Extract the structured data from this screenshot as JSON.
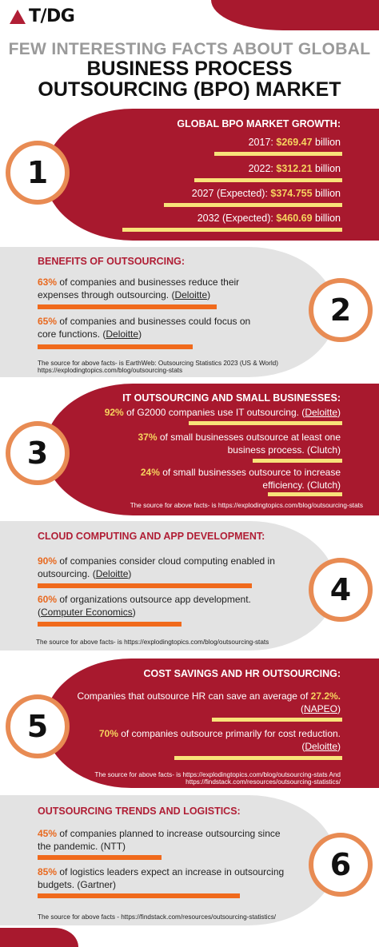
{
  "logo": {
    "text": "T/DG"
  },
  "title": {
    "line1": "FEW INTERESTING FACTS ABOUT GLOBAL",
    "line2": "BUSINESS PROCESS",
    "line3": "OUTSOURCING (BPO) MARKET"
  },
  "colors": {
    "red": "#a8192e",
    "gray": "#e3e3e3",
    "orange": "#f06a1c",
    "yellow": "#f8e27a",
    "circle_border": "#e88b53"
  },
  "sections": [
    {
      "number": "1",
      "heading": "GLOBAL BPO MARKET GROWTH:",
      "rows": [
        {
          "label": "2017: ",
          "value": "$269.47",
          "unit": " billion"
        },
        {
          "label": "2022: ",
          "value": "$312.21",
          "unit": " billion"
        },
        {
          "label": "2027 (Expected): ",
          "value": "$374.755",
          "unit": " billion"
        },
        {
          "label": "2032 (Expected): ",
          "value": "$460.69",
          "unit": " billion"
        }
      ]
    },
    {
      "number": "2",
      "heading": "BENEFITS OF OUTSOURCING:",
      "facts": [
        {
          "stat": "63%",
          "text": " of companies and businesses reduce their expenses through outsourcing. (",
          "source": "Deloitte",
          "end": ")"
        },
        {
          "stat": "65%",
          "text": " of companies and businesses could focus on core functions. (",
          "source": "Deloitte",
          "end": ")"
        }
      ],
      "source_line1": "The source for above facts-  is  EarthWeb: Outsourcing Statistics 2023 (US & World)",
      "source_line2": "https://explodingtopics.com/blog/outsourcing-stats"
    },
    {
      "number": "3",
      "heading": "IT OUTSOURCING AND SMALL BUSINESSES:",
      "facts": [
        {
          "stat": "92%",
          "text": " of G2000 companies use IT outsourcing. (",
          "source": "Deloitte",
          "end": ")"
        },
        {
          "stat": "37%",
          "text": " of small businesses outsource at least one business process. (Clutch)",
          "source": "",
          "end": ""
        },
        {
          "stat": "24%",
          "text": " of small businesses outsource to increase efficiency. (Clutch)",
          "source": "",
          "end": ""
        }
      ],
      "source_line1": "The source for above facts- is https://explodingtopics.com/blog/outsourcing-stats"
    },
    {
      "number": "4",
      "heading": "CLOUD COMPUTING AND APP DEVELOPMENT:",
      "facts": [
        {
          "stat": "90%",
          "text": " of companies consider cloud computing enabled in outsourcing. (",
          "source": "Deloitte",
          "end": ")"
        },
        {
          "stat": "60%",
          "text": " of organizations outsource app development. (",
          "source": "Computer Economics",
          "end": ")"
        }
      ],
      "source_line1": "The source for above facts- is https://explodingtopics.com/blog/outsourcing-stats"
    },
    {
      "number": "5",
      "heading": "COST SAVINGS AND HR OUTSOURCING:",
      "facts": [
        {
          "pre": "Companies that outsource HR can save an average of ",
          "stat": "27.2%.",
          "text": " (",
          "source": "NAPEO",
          "end": ")"
        },
        {
          "stat": "70%",
          "text": " of companies outsource primarily for cost reduction. (",
          "source": "Deloitte",
          "end": ")"
        }
      ],
      "source_line1": "The source for above facts-  is https://explodingtopics.com/blog/outsourcing-stats And",
      "source_line2": "https://findstack.com/resources/outsourcing-statistics/"
    },
    {
      "number": "6",
      "heading": "OUTSOURCING TRENDS AND LOGISTICS:",
      "facts": [
        {
          "stat": "45%",
          "text": " of companies planned to increase outsourcing since the pandemic. (NTT)",
          "source": "",
          "end": ""
        },
        {
          "stat": "85%",
          "text": " of logistics leaders expect an increase in outsourcing budgets. (Gartner)",
          "source": "",
          "end": ""
        }
      ],
      "source_line1": "The source for above facts - https://findstack.com/resources/outsourcing-statistics/"
    }
  ]
}
